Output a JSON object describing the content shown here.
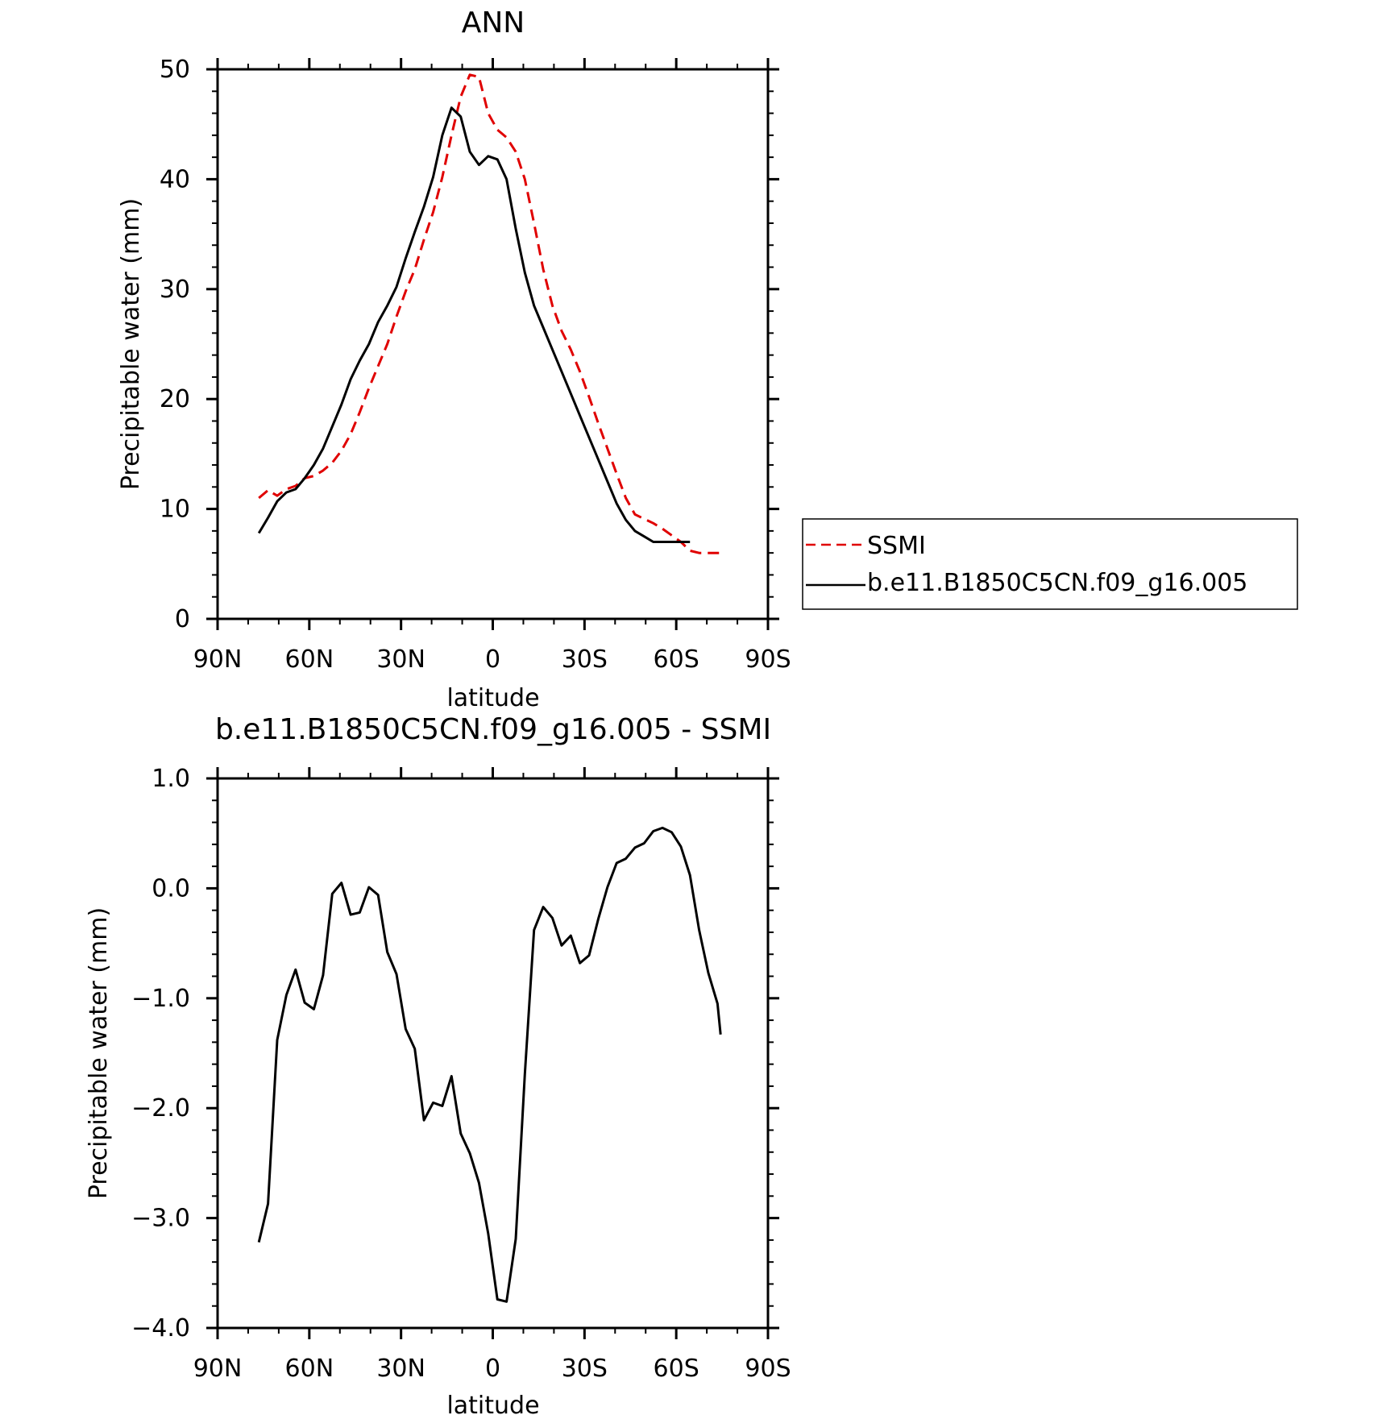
{
  "chart_data": [
    {
      "type": "line",
      "title": "ANN",
      "xlabel": "latitude",
      "ylabel": "Precipitable water (mm)",
      "xlim": [
        90,
        -90
      ],
      "ylim": [
        0,
        50
      ],
      "x_tick_labels": [
        {
          "value": 90,
          "label": "90N"
        },
        {
          "value": 60,
          "label": "60N"
        },
        {
          "value": 30,
          "label": "30N"
        },
        {
          "value": 0,
          "label": "0"
        },
        {
          "value": -30,
          "label": "30S"
        },
        {
          "value": -60,
          "label": "60S"
        },
        {
          "value": -90,
          "label": "90S"
        }
      ],
      "y_tick_labels": [
        {
          "value": 0,
          "label": "0"
        },
        {
          "value": 10,
          "label": "10"
        },
        {
          "value": 20,
          "label": "20"
        },
        {
          "value": 30,
          "label": "30"
        },
        {
          "value": 40,
          "label": "40"
        },
        {
          "value": 50,
          "label": "50"
        }
      ],
      "legend_position": "right",
      "series": [
        {
          "name": "SSMI",
          "color": "#e00000",
          "dash": true,
          "x": [
            76.5,
            73.5,
            70.5,
            67.5,
            64.5,
            61.5,
            58.5,
            55.5,
            52.5,
            49.5,
            46.5,
            43.5,
            40.5,
            37.5,
            34.5,
            31.5,
            28.5,
            25.5,
            22.5,
            19.5,
            16.5,
            13.5,
            10.5,
            7.5,
            4.5,
            1.5,
            -1.5,
            -4.5,
            -7.5,
            -10.5,
            -13.5,
            -16.5,
            -19.5,
            -22.5,
            -25.5,
            -28.5,
            -31.5,
            -34.5,
            -37.5,
            -40.5,
            -43.5,
            -46.5,
            -49.5,
            -52.5,
            -55.5,
            -58.5,
            -61.5,
            -64.5,
            -67.5,
            -70.5,
            -73.5,
            -74.5
          ],
          "values": [
            11.0,
            11.7,
            11.2,
            11.8,
            12.1,
            12.8,
            13.0,
            13.5,
            14.2,
            15.3,
            16.8,
            18.8,
            21.0,
            23.0,
            25.0,
            27.5,
            29.8,
            31.8,
            34.5,
            37.0,
            40.2,
            44.0,
            47.5,
            49.5,
            49.3,
            46.0,
            44.5,
            43.8,
            42.5,
            40.0,
            36.0,
            31.8,
            28.5,
            26.2,
            24.5,
            22.5,
            20.2,
            17.8,
            15.5,
            13.2,
            11.0,
            9.5,
            9.1,
            8.7,
            8.2,
            7.6,
            7.0,
            6.2,
            6.0,
            6.0,
            6.0,
            6.0
          ]
        },
        {
          "name": "b.e11.B1850C5CN.f09_g16.005",
          "color": "#000000",
          "dash": false,
          "x": [
            76.5,
            73.5,
            70.5,
            67.5,
            64.5,
            61.5,
            58.5,
            55.5,
            52.5,
            49.5,
            46.5,
            43.5,
            40.5,
            37.5,
            34.5,
            31.5,
            28.5,
            25.5,
            22.5,
            19.5,
            16.5,
            13.5,
            10.5,
            7.5,
            4.5,
            1.5,
            -1.5,
            -4.5,
            -7.5,
            -10.5,
            -13.5,
            -16.5,
            -19.5,
            -22.5,
            -25.5,
            -28.5,
            -31.5,
            -34.5,
            -37.5,
            -40.5,
            -43.5,
            -46.5,
            -49.5,
            -52.5,
            -55.5,
            -58.5,
            -61.5,
            -64.5
          ],
          "values": [
            7.8,
            9.2,
            10.7,
            11.5,
            11.8,
            12.8,
            14.0,
            15.5,
            17.5,
            19.5,
            21.8,
            23.5,
            25.0,
            27.0,
            28.5,
            30.2,
            32.8,
            35.2,
            37.5,
            40.2,
            44.0,
            46.5,
            45.7,
            42.5,
            41.3,
            42.1,
            41.8,
            40.0,
            35.5,
            31.5,
            28.5,
            26.5,
            24.5,
            22.5,
            20.5,
            18.5,
            16.5,
            14.5,
            12.5,
            10.5,
            9.0,
            8.0,
            7.5,
            7.0,
            7.0,
            7.0,
            7.0,
            7.0
          ]
        }
      ]
    },
    {
      "type": "line",
      "title": "b.e11.B1850C5CN.f09_g16.005 - SSMI",
      "xlabel": "latitude",
      "ylabel": "Precipitable water (mm)",
      "xlim": [
        90,
        -90
      ],
      "ylim": [
        -4.0,
        1.0
      ],
      "x_tick_labels": [
        {
          "value": 90,
          "label": "90N"
        },
        {
          "value": 60,
          "label": "60N"
        },
        {
          "value": 30,
          "label": "30N"
        },
        {
          "value": 0,
          "label": "0"
        },
        {
          "value": -30,
          "label": "30S"
        },
        {
          "value": -60,
          "label": "60S"
        },
        {
          "value": -90,
          "label": "90S"
        }
      ],
      "y_tick_labels": [
        {
          "value": 1.0,
          "label": "1.0"
        },
        {
          "value": 0.0,
          "label": "0.0"
        },
        {
          "value": -1.0,
          "label": "−1.0"
        },
        {
          "value": -2.0,
          "label": "−2.0"
        },
        {
          "value": -3.0,
          "label": "−3.0"
        },
        {
          "value": -4.0,
          "label": "−4.0"
        }
      ],
      "series": [
        {
          "color": "#000000",
          "dash": false,
          "x": [
            76.5,
            73.5,
            70.5,
            67.5,
            64.5,
            61.5,
            58.5,
            55.5,
            52.5,
            49.5,
            46.5,
            43.5,
            40.5,
            37.5,
            34.5,
            31.5,
            28.5,
            25.5,
            22.5,
            19.5,
            16.5,
            13.5,
            10.5,
            7.5,
            4.5,
            1.5,
            -1.5,
            -4.5,
            -7.5,
            -10.5,
            -13.5,
            -16.5,
            -19.5,
            -22.5,
            -25.5,
            -28.5,
            -31.5,
            -34.5,
            -37.5,
            -40.5,
            -43.5,
            -46.5,
            -49.5,
            -52.5,
            -55.5,
            -58.5,
            -61.5,
            -64.5
          ],
          "values": [
            -3.22,
            -2.87,
            -1.38,
            -0.97,
            -0.74,
            -1.04,
            -1.1,
            -0.79,
            -0.05,
            0.05,
            -0.24,
            -0.22,
            0.01,
            -0.06,
            -0.58,
            -0.78,
            -1.28,
            -1.46,
            -2.11,
            -1.95,
            -1.98,
            -1.71,
            -2.23,
            -2.41,
            -2.68,
            -3.14,
            -3.74,
            -3.76,
            -3.19,
            -1.69,
            -0.38,
            -0.17,
            -0.27,
            -0.52,
            -0.43,
            -0.68,
            -0.61,
            -0.28,
            0.01,
            0.23,
            0.27,
            0.37,
            0.41,
            0.52,
            0.55,
            0.51,
            0.38,
            0.12
          ]
        }
      ],
      "tail": {
        "x": [
          -67.5,
          -70.5,
          -73.5,
          -74.5
        ],
        "values": [
          -0.38,
          -0.77,
          -1.05,
          -1.33
        ]
      }
    }
  ]
}
